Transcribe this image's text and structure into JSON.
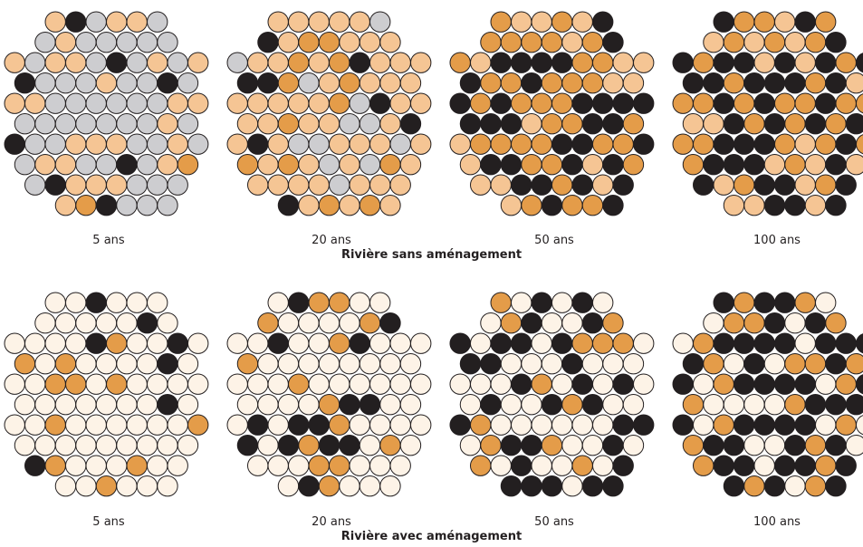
{
  "colors": {
    "empty_light": "#fdf3e7",
    "grey": "#cdcdd0",
    "peach": "#f5c594",
    "orange": "#e49c49",
    "black": "#231f20",
    "outline": "#231f20"
  },
  "rows": [
    {
      "title": "Rivière sans aménagement",
      "panels": [
        {
          "label": "5 ans",
          "mix": {
            "grey": 0.58,
            "peach": 0.3,
            "orange": 0.06,
            "black": 0.06
          }
        },
        {
          "label": "20 ans",
          "mix": {
            "grey": 0.12,
            "peach": 0.62,
            "orange": 0.14,
            "black": 0.12
          }
        },
        {
          "label": "50 ans",
          "mix": {
            "grey": 0.0,
            "peach": 0.35,
            "orange": 0.33,
            "black": 0.32
          }
        },
        {
          "label": "100 ans",
          "mix": {
            "grey": 0.0,
            "peach": 0.22,
            "orange": 0.32,
            "black": 0.46
          }
        }
      ]
    },
    {
      "title": "Rivière avec aménagement",
      "panels": [
        {
          "label": "5 ans",
          "mix": {
            "empty_light": 0.88,
            "orange": 0.06,
            "black": 0.06
          }
        },
        {
          "label": "20 ans",
          "mix": {
            "empty_light": 0.74,
            "orange": 0.14,
            "black": 0.12
          }
        },
        {
          "label": "50 ans",
          "mix": {
            "empty_light": 0.46,
            "orange": 0.22,
            "black": 0.32
          }
        },
        {
          "label": "100 ans",
          "mix": {
            "empty_light": 0.24,
            "orange": 0.3,
            "black": 0.46
          }
        }
      ]
    }
  ]
}
